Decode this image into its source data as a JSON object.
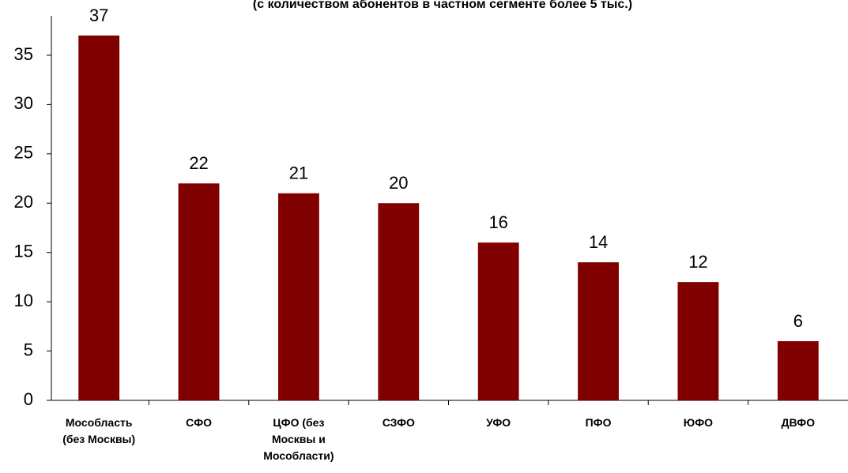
{
  "chart_data": {
    "type": "bar",
    "subtitle": "(с количеством абонентов в частном сегменте более 5 тыс.)",
    "categories": [
      "Мособласть (без Москвы)",
      "СФО",
      "ЦФО (без Москвы и Мособласти)",
      "СЗФО",
      "УФО",
      "ПФО",
      "ЮФО",
      "ДВФО"
    ],
    "values": [
      37,
      22,
      21,
      20,
      16,
      14,
      12,
      6
    ],
    "color": "#800000",
    "ylim": [
      0,
      39
    ],
    "yticks": [
      0,
      5,
      10,
      15,
      20,
      25,
      30,
      35
    ],
    "grid": false
  }
}
